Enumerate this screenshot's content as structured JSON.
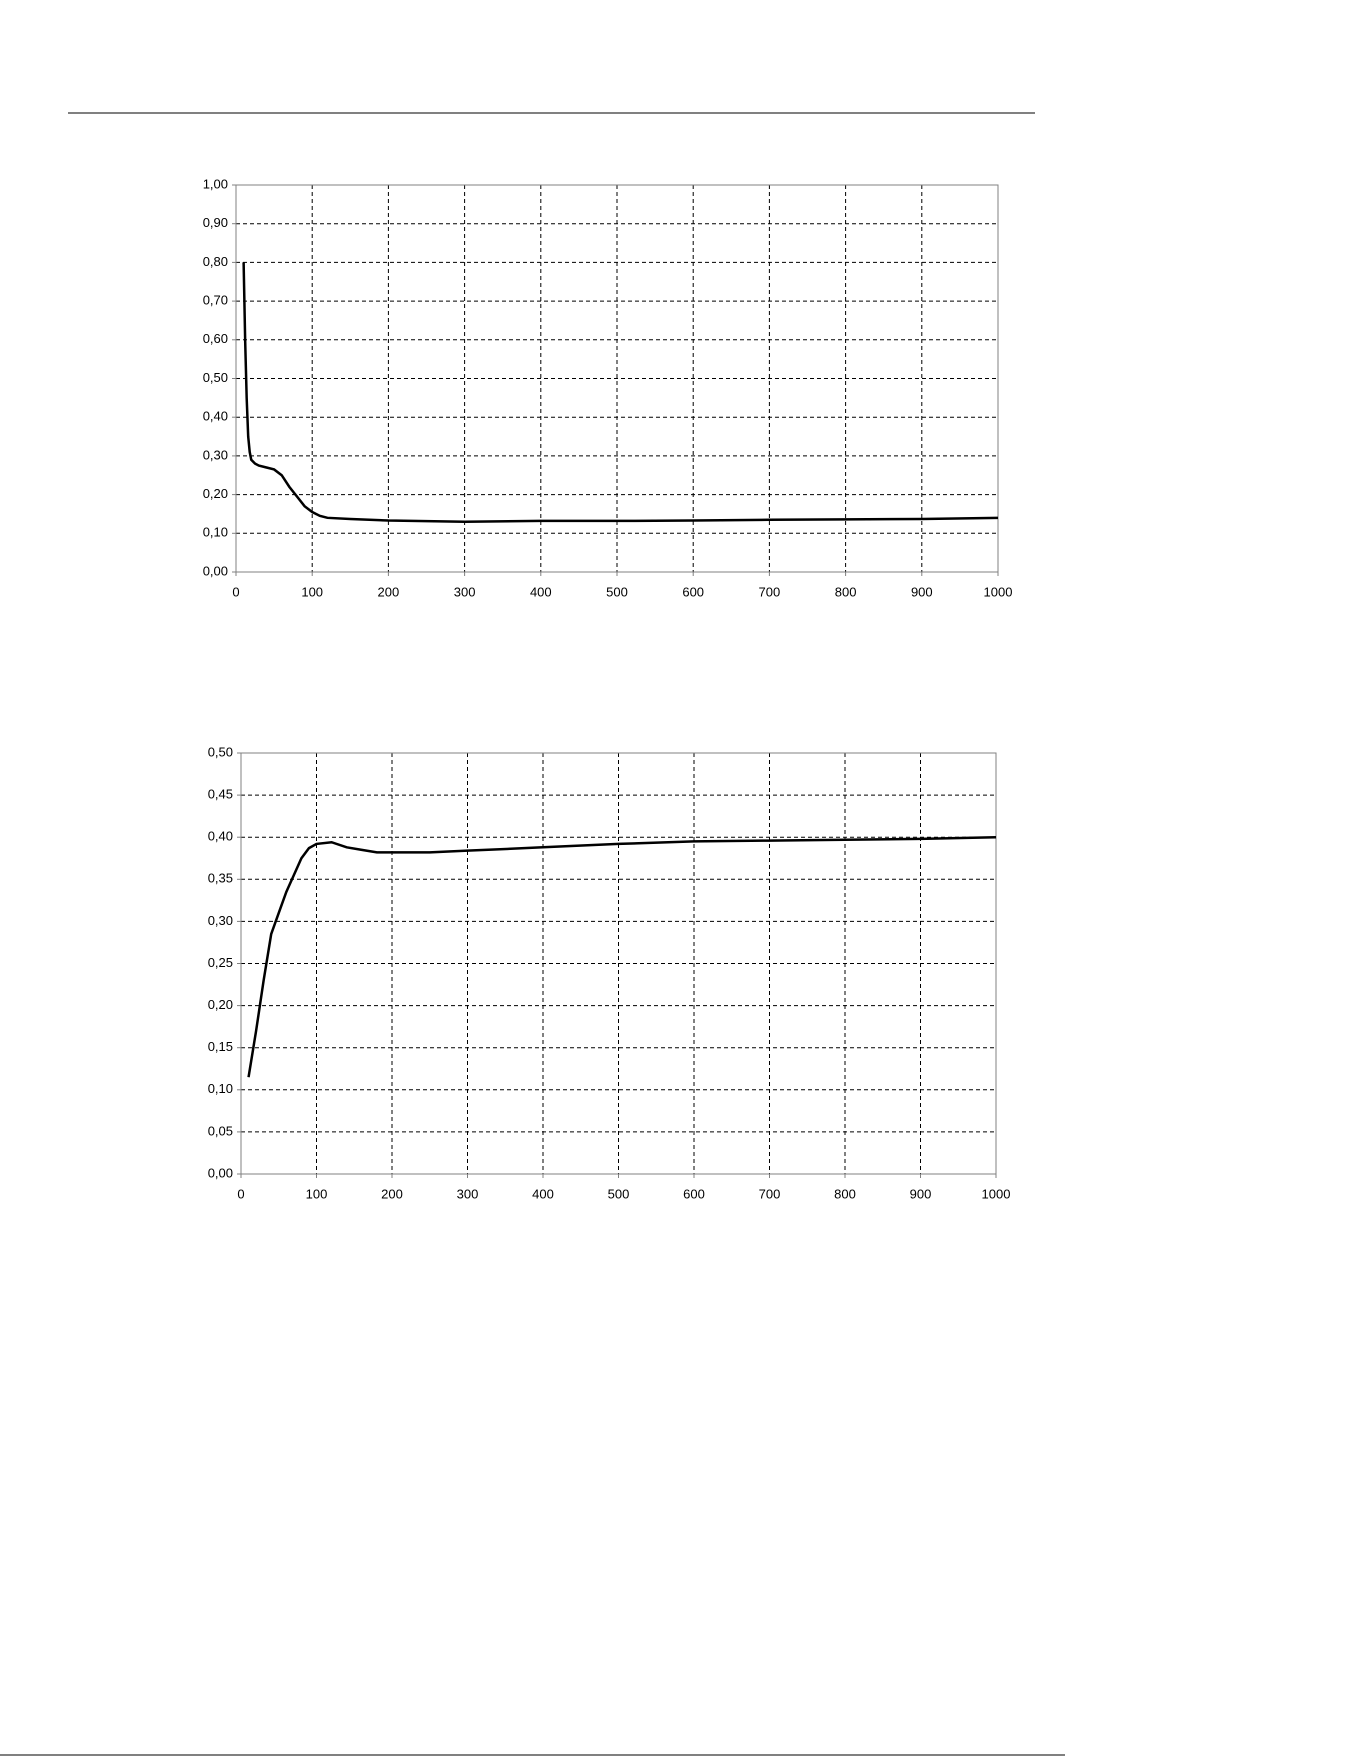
{
  "chart_data": [
    {
      "type": "line",
      "grid": true,
      "color": "#000000",
      "x": [
        10,
        12,
        14,
        16,
        18,
        20,
        25,
        30,
        40,
        50,
        60,
        70,
        80,
        90,
        100,
        110,
        120,
        150,
        200,
        300,
        400,
        500,
        600,
        700,
        800,
        900,
        1000
      ],
      "values": [
        0.8,
        0.6,
        0.45,
        0.35,
        0.31,
        0.29,
        0.28,
        0.275,
        0.27,
        0.265,
        0.25,
        0.22,
        0.195,
        0.17,
        0.155,
        0.145,
        0.14,
        0.137,
        0.133,
        0.13,
        0.132,
        0.132,
        0.133,
        0.135,
        0.136,
        0.137,
        0.14
      ],
      "xlim": [
        0,
        1000
      ],
      "xticks": [
        0,
        100,
        200,
        300,
        400,
        500,
        600,
        700,
        800,
        900,
        1000
      ],
      "ylim": [
        0,
        1
      ],
      "yticks": [
        {
          "value": 0,
          "label": "0,00"
        },
        {
          "value": 0.1,
          "label": "0,10"
        },
        {
          "value": 0.2,
          "label": "0,20"
        },
        {
          "value": 0.3,
          "label": "0,30"
        },
        {
          "value": 0.4,
          "label": "0,40"
        },
        {
          "value": 0.5,
          "label": "0,50"
        },
        {
          "value": 0.6,
          "label": "0,60"
        },
        {
          "value": 0.7,
          "label": "0,70"
        },
        {
          "value": 0.8,
          "label": "0,80"
        },
        {
          "value": 0.9,
          "label": "0,90"
        },
        {
          "value": 1,
          "label": "1,00"
        }
      ]
    },
    {
      "type": "line",
      "grid": true,
      "color": "#000000",
      "x": [
        10,
        20,
        30,
        40,
        50,
        60,
        70,
        80,
        90,
        100,
        120,
        140,
        160,
        180,
        200,
        250,
        300,
        400,
        500,
        600,
        700,
        800,
        900,
        1000
      ],
      "values": [
        0.115,
        0.17,
        0.23,
        0.285,
        0.31,
        0.335,
        0.355,
        0.375,
        0.387,
        0.392,
        0.394,
        0.388,
        0.385,
        0.382,
        0.382,
        0.382,
        0.384,
        0.388,
        0.392,
        0.395,
        0.396,
        0.397,
        0.398,
        0.4
      ],
      "xlim": [
        0,
        1000
      ],
      "xticks": [
        0,
        100,
        200,
        300,
        400,
        500,
        600,
        700,
        800,
        900,
        1000
      ],
      "ylim": [
        0,
        0.5
      ],
      "yticks": [
        {
          "value": 0,
          "label": "0,00"
        },
        {
          "value": 0.05,
          "label": "0,05"
        },
        {
          "value": 0.1,
          "label": "0,10"
        },
        {
          "value": 0.15,
          "label": "0,15"
        },
        {
          "value": 0.2,
          "label": "0,20"
        },
        {
          "value": 0.25,
          "label": "0,25"
        },
        {
          "value": 0.3,
          "label": "0,30"
        },
        {
          "value": 0.35,
          "label": "0,35"
        },
        {
          "value": 0.4,
          "label": "0,40"
        },
        {
          "value": 0.45,
          "label": "0,45"
        },
        {
          "value": 0.5,
          "label": "0,50"
        }
      ]
    }
  ]
}
